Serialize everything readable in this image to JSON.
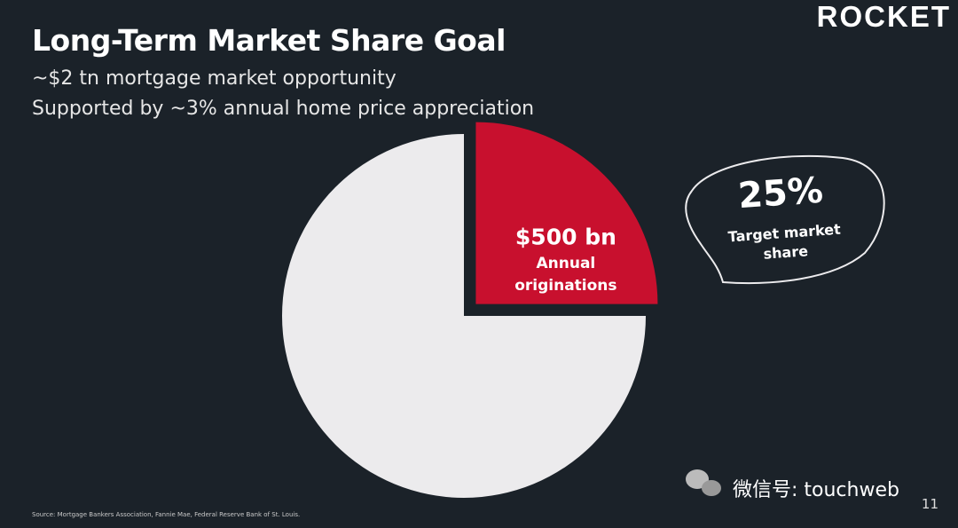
{
  "logo": "ROCKET",
  "title": "Long-Term Market Share Goal",
  "subtitle_lines": [
    "~$2 tn mortgage market opportunity",
    "Supported by ~3% annual home price appreciation"
  ],
  "chart_data": {
    "type": "pie",
    "categories": [
      "Annual originations",
      null
    ],
    "values": [
      500,
      1500
    ],
    "value_labels": [
      "$500 bn",
      null
    ],
    "colors": [
      "#c8102e",
      "#ecebed"
    ],
    "exploded": [
      true,
      false
    ],
    "callout": {
      "value": "25%",
      "label": "Target market share"
    }
  },
  "source": "Source: Mortgage Bankers Association, Fannie Mae, Federal Reserve Bank of St. Louis.",
  "watermark": "微信号: touchweb",
  "page_number": 11
}
